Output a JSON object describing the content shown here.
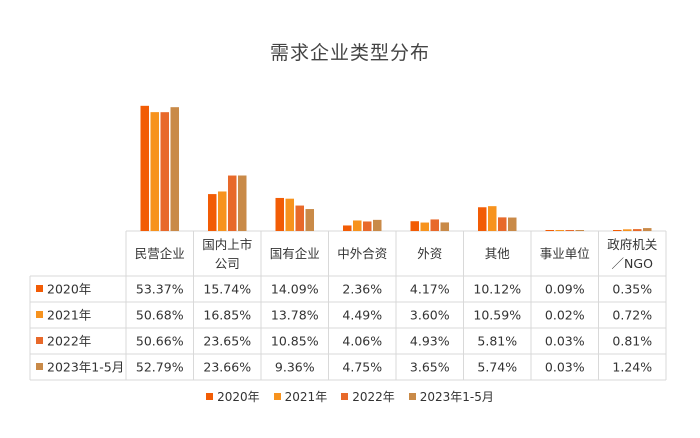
{
  "chart_data": {
    "type": "bar",
    "title": "需求企业类型分布",
    "categories": [
      "民营企业",
      "国内上市公司",
      "国有企业",
      "中外合资",
      "外资",
      "其他",
      "事业单位",
      "政府机关／NGO"
    ],
    "category_lines": [
      [
        "民营企业"
      ],
      [
        "国内上市",
        "公司"
      ],
      [
        "国有企业"
      ],
      [
        "中外合资"
      ],
      [
        "外资"
      ],
      [
        "其他"
      ],
      [
        "事业单位"
      ],
      [
        "政府机关",
        "／NGO"
      ]
    ],
    "series": [
      {
        "name": "2020年",
        "color": "#f25c05",
        "values": [
          53.37,
          15.74,
          14.09,
          2.36,
          4.17,
          10.12,
          0.09,
          0.35
        ],
        "labels": [
          "53.37%",
          "15.74%",
          "14.09%",
          "2.36%",
          "4.17%",
          "10.12%",
          "0.09%",
          "0.35%"
        ]
      },
      {
        "name": "2021年",
        "color": "#f7931e",
        "values": [
          50.68,
          16.85,
          13.78,
          4.49,
          3.6,
          10.59,
          0.02,
          0.72
        ],
        "labels": [
          "50.68%",
          "16.85%",
          "13.78%",
          "4.49%",
          "3.60%",
          "10.59%",
          "0.02%",
          "0.72%"
        ]
      },
      {
        "name": "2022年",
        "color": "#e8692a",
        "values": [
          50.66,
          23.65,
          10.85,
          4.06,
          4.93,
          5.81,
          0.03,
          0.81
        ],
        "labels": [
          "50.66%",
          "23.65%",
          "10.85%",
          "4.06%",
          "4.93%",
          "5.81%",
          "0.03%",
          "0.81%"
        ]
      },
      {
        "name": "2023年1-5月",
        "color": "#c98a48",
        "values": [
          52.79,
          23.66,
          9.36,
          4.75,
          3.65,
          5.74,
          0.03,
          1.24
        ],
        "labels": [
          "52.79%",
          "23.66%",
          "9.36%",
          "4.75%",
          "3.65%",
          "5.74%",
          "0.03%",
          "1.24%"
        ]
      }
    ],
    "ylim": [
      0,
      55
    ],
    "grid": false,
    "legend_position": "bottom",
    "data_table": true
  }
}
